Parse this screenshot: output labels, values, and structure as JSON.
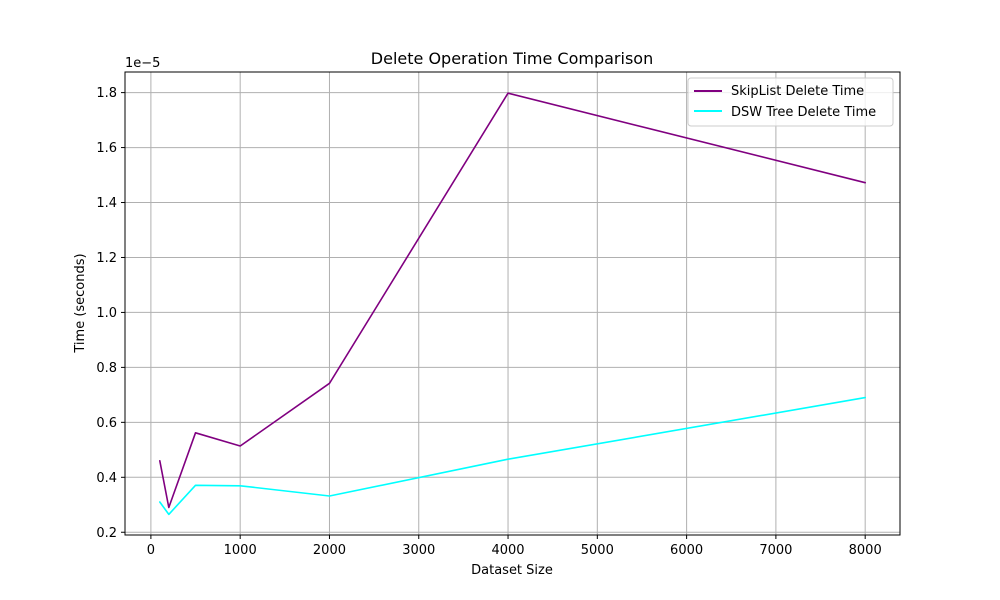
{
  "chart_data": {
    "type": "line",
    "title": "Delete Operation Time Comparison",
    "xlabel": "Dataset Size",
    "ylabel": "Time (seconds)",
    "y_offset_label": "1e−5",
    "y_scale_factor": 1e-05,
    "xlim": [
      -290,
      8390
    ],
    "ylim": [
      0.19,
      1.875
    ],
    "x_ticks": [
      0,
      1000,
      2000,
      3000,
      4000,
      5000,
      6000,
      7000,
      8000
    ],
    "x_tick_labels": [
      "0",
      "1000",
      "2000",
      "3000",
      "4000",
      "5000",
      "6000",
      "7000",
      "8000"
    ],
    "y_ticks": [
      0.2,
      0.4,
      0.6,
      0.8,
      1.0,
      1.2,
      1.4,
      1.6,
      1.8
    ],
    "y_tick_labels": [
      "0.2",
      "0.4",
      "0.6",
      "0.8",
      "1.0",
      "1.2",
      "1.4",
      "1.6",
      "1.8"
    ],
    "grid": true,
    "legend_position": "upper right",
    "x": [
      100,
      200,
      500,
      1000,
      2000,
      4000,
      8000
    ],
    "series": [
      {
        "name": "SkipList Delete Time",
        "color": "#800080",
        "values": [
          0.46,
          0.29,
          0.562,
          0.514,
          0.742,
          1.798,
          1.472
        ]
      },
      {
        "name": "DSW Tree Delete Time",
        "color": "#00ffff",
        "values": [
          0.31,
          0.265,
          0.371,
          0.369,
          0.332,
          0.466,
          0.69
        ]
      }
    ]
  }
}
